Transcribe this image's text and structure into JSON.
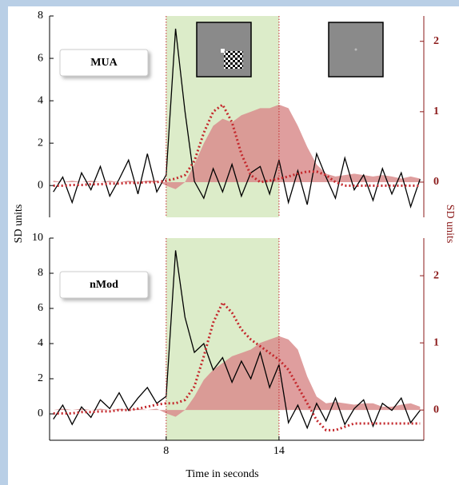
{
  "figure": {
    "ylabel": "SD units",
    "y2label": "SD units",
    "xlabel": "Time in seconds"
  },
  "chart_data": [
    {
      "type": "line",
      "label": "MUA",
      "shaded_interval": [
        8,
        14
      ],
      "x": [
        2,
        2.5,
        3,
        3.5,
        4,
        4.5,
        5,
        5.5,
        6,
        6.5,
        7,
        7.5,
        8,
        8.5,
        9,
        9.5,
        10,
        10.5,
        11,
        11.5,
        12,
        12.5,
        13,
        13.5,
        14,
        14.5,
        15,
        15.5,
        16,
        16.5,
        17,
        17.5,
        18,
        18.5,
        19,
        19.5,
        20,
        20.5,
        21,
        21.5
      ],
      "xlim": [
        1.8,
        21.7
      ],
      "ylim": [
        -1.5,
        8
      ],
      "yticks": [
        0,
        2,
        4,
        6,
        8
      ],
      "y2lim": [
        -0.5,
        2.36
      ],
      "y2ticks": [
        0,
        1,
        2
      ],
      "series": [
        {
          "kind": "area",
          "axis": "y2",
          "color": "#d98d8d",
          "values": [
            0.02,
            0.0,
            0.02,
            0.0,
            0.02,
            0.0,
            0.02,
            0.0,
            0.02,
            0.0,
            0.02,
            0.02,
            -0.05,
            -0.1,
            0.0,
            0.25,
            0.55,
            0.8,
            0.9,
            0.85,
            0.95,
            1.0,
            1.05,
            1.05,
            1.1,
            1.05,
            0.8,
            0.5,
            0.25,
            0.12,
            0.08,
            0.1,
            0.12,
            0.1,
            0.08,
            0.1,
            0.08,
            0.05,
            0.08,
            0.05
          ]
        },
        {
          "kind": "line",
          "color": "#000000",
          "values": [
            -0.3,
            0.4,
            -0.8,
            0.6,
            -0.2,
            0.9,
            -0.5,
            0.3,
            1.2,
            -0.4,
            1.5,
            -0.3,
            0.5,
            7.4,
            3.5,
            0.2,
            -0.6,
            0.8,
            -0.3,
            1.0,
            -0.5,
            0.6,
            0.9,
            -0.4,
            1.2,
            -0.8,
            0.7,
            -0.9,
            1.5,
            0.4,
            -0.6,
            1.3,
            -0.2,
            0.5,
            -0.7,
            0.8,
            -0.4,
            0.6,
            -1.0,
            0.3
          ]
        },
        {
          "kind": "dotted",
          "axis": "y2",
          "color": "#c4282c",
          "values": [
            -0.05,
            -0.05,
            -0.04,
            -0.04,
            -0.03,
            -0.03,
            -0.02,
            -0.02,
            -0.01,
            -0.01,
            0.0,
            0.0,
            0.02,
            0.05,
            0.1,
            0.3,
            0.7,
            1.0,
            1.1,
            0.85,
            0.4,
            0.1,
            0.0,
            0.02,
            0.05,
            0.08,
            0.12,
            0.15,
            0.15,
            0.1,
            0.0,
            -0.05,
            -0.05,
            -0.05,
            -0.05,
            -0.05,
            -0.05,
            -0.05,
            -0.05,
            -0.05
          ]
        }
      ]
    },
    {
      "type": "line",
      "label": "nMod",
      "shaded_interval": [
        8,
        14
      ],
      "x": [
        2,
        2.5,
        3,
        3.5,
        4,
        4.5,
        5,
        5.5,
        6,
        6.5,
        7,
        7.5,
        8,
        8.5,
        9,
        9.5,
        10,
        10.5,
        11,
        11.5,
        12,
        12.5,
        13,
        13.5,
        14,
        14.5,
        15,
        15.5,
        16,
        16.5,
        17,
        17.5,
        18,
        18.5,
        19,
        19.5,
        20,
        20.5,
        21,
        21.5
      ],
      "xlim": [
        1.8,
        21.7
      ],
      "xticks": [
        8,
        14
      ],
      "ylim": [
        -1.5,
        10
      ],
      "yticks": [
        0,
        2,
        4,
        6,
        8,
        10
      ],
      "y2lim": [
        -0.45,
        2.56
      ],
      "y2ticks": [
        0,
        1,
        2
      ],
      "series": [
        {
          "kind": "area",
          "axis": "y2",
          "color": "#d98d8d",
          "values": [
            0.0,
            0.02,
            0.0,
            0.02,
            0.0,
            0.02,
            0.0,
            0.02,
            0.0,
            0.02,
            0.0,
            0.02,
            -0.05,
            -0.1,
            0.0,
            0.2,
            0.45,
            0.6,
            0.7,
            0.8,
            0.85,
            0.9,
            1.0,
            1.05,
            1.1,
            1.05,
            0.9,
            0.5,
            0.2,
            0.1,
            0.12,
            0.1,
            0.08,
            0.1,
            0.1,
            0.05,
            0.05,
            0.08,
            0.1,
            0.05
          ]
        },
        {
          "kind": "line",
          "color": "#000000",
          "values": [
            -0.3,
            0.5,
            -0.6,
            0.4,
            -0.2,
            0.8,
            0.3,
            1.2,
            0.2,
            0.9,
            1.5,
            0.6,
            1.0,
            9.3,
            5.5,
            3.5,
            4.0,
            2.5,
            3.2,
            1.8,
            3.0,
            2.0,
            3.5,
            1.5,
            2.8,
            -0.5,
            0.5,
            -0.8,
            0.6,
            -0.4,
            0.9,
            -0.6,
            0.3,
            0.8,
            -0.7,
            0.6,
            0.2,
            0.9,
            -0.5,
            0.2
          ]
        },
        {
          "kind": "dotted",
          "axis": "y2",
          "color": "#c4282c",
          "values": [
            -0.05,
            -0.05,
            -0.05,
            -0.03,
            -0.03,
            -0.02,
            -0.02,
            0.0,
            0.0,
            0.02,
            0.05,
            0.08,
            0.1,
            0.1,
            0.15,
            0.35,
            0.8,
            1.3,
            1.6,
            1.45,
            1.2,
            1.05,
            0.95,
            0.85,
            0.75,
            0.6,
            0.35,
            0.1,
            -0.15,
            -0.3,
            -0.3,
            -0.25,
            -0.2,
            -0.2,
            -0.2,
            -0.2,
            -0.2,
            -0.2,
            -0.2,
            -0.2
          ]
        }
      ]
    }
  ]
}
